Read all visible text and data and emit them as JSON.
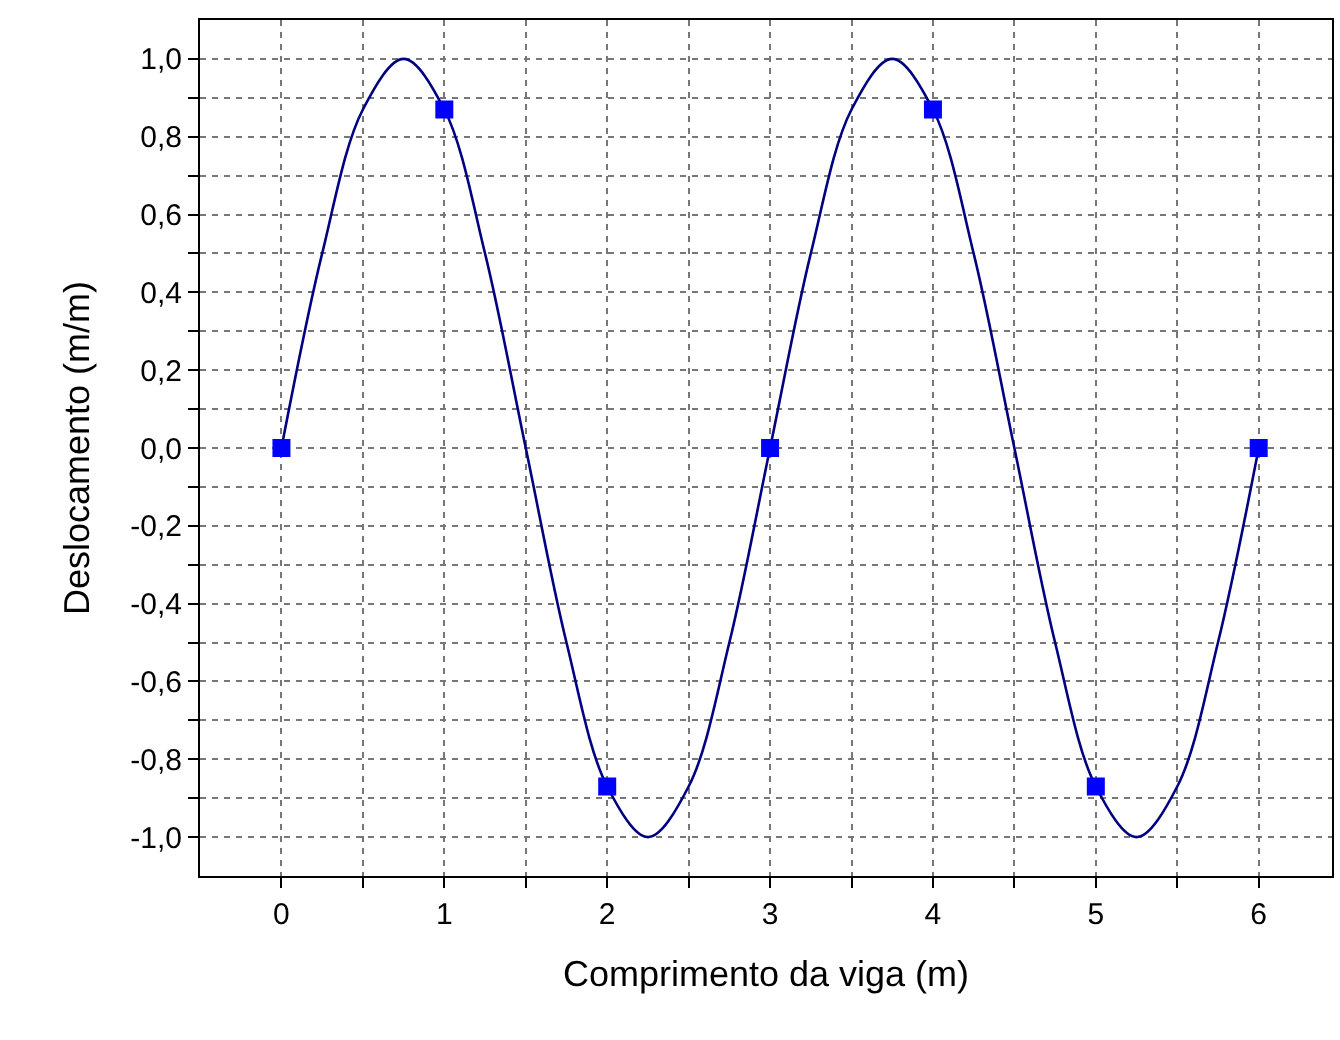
{
  "chart_data": {
    "type": "line",
    "xlabel": "Comprimento da viga (m)",
    "ylabel": "Deslocamento (m/m)",
    "xlim": [
      -0.5,
      6.45
    ],
    "xticks": [
      0,
      {
        "value": 0.5,
        "label": null
      },
      1,
      {
        "value": 1.5,
        "label": null
      },
      2,
      {
        "value": 2.5,
        "label": null
      },
      3,
      {
        "value": 3.5,
        "label": null
      },
      4,
      {
        "value": 4.5,
        "label": null
      },
      5,
      {
        "value": 5.5,
        "label": null
      },
      6
    ],
    "ylim": [
      -1.1,
      1.1
    ],
    "yticks": [
      {
        "value": -1.0,
        "label": "-1,0"
      },
      {
        "value": -0.9,
        "label": null
      },
      {
        "value": -0.8,
        "label": "-0,8"
      },
      {
        "value": -0.7,
        "label": null
      },
      {
        "value": -0.6,
        "label": "-0,6"
      },
      {
        "value": -0.5,
        "label": null
      },
      {
        "value": -0.4,
        "label": "-0,4"
      },
      {
        "value": -0.3,
        "label": null
      },
      {
        "value": -0.2,
        "label": "-0,2"
      },
      {
        "value": -0.1,
        "label": null
      },
      {
        "value": 0.0,
        "label": "0,0"
      },
      {
        "value": 0.1,
        "label": null
      },
      {
        "value": 0.2,
        "label": "0,2"
      },
      {
        "value": 0.3,
        "label": null
      },
      {
        "value": 0.4,
        "label": "0,4"
      },
      {
        "value": 0.5,
        "label": null
      },
      {
        "value": 0.6,
        "label": "0,6"
      },
      {
        "value": 0.7,
        "label": null
      },
      {
        "value": 0.8,
        "label": "0,8"
      },
      {
        "value": 0.9,
        "label": null
      },
      {
        "value": 1.0,
        "label": "1,0"
      }
    ],
    "grid": true,
    "series": [
      {
        "color": "#000080",
        "marker": "none",
        "line_style": "solid",
        "x": [
          0,
          0.25,
          0.5,
          0.75,
          1,
          1.25,
          1.5,
          1.75,
          2,
          2.25,
          2.5,
          2.75,
          3,
          3.25,
          3.5,
          3.75,
          4,
          4.25,
          4.5,
          4.75,
          5,
          5.25,
          5.5,
          5.75,
          6
        ],
        "values": [
          0,
          0.5,
          0.87,
          1.0,
          0.87,
          0.5,
          0,
          -0.5,
          -0.87,
          -1.0,
          -0.87,
          -0.5,
          0,
          0.5,
          0.87,
          1.0,
          0.87,
          0.5,
          0,
          -0.5,
          -0.87,
          -1.0,
          -0.87,
          -0.5,
          0
        ]
      },
      {
        "type": "scatter",
        "color": "#0000ff",
        "marker": "square",
        "x": [
          0,
          1,
          2,
          3,
          4,
          5,
          6
        ],
        "values": [
          0,
          0.87,
          -0.87,
          0,
          0.87,
          -0.87,
          0
        ]
      }
    ]
  }
}
